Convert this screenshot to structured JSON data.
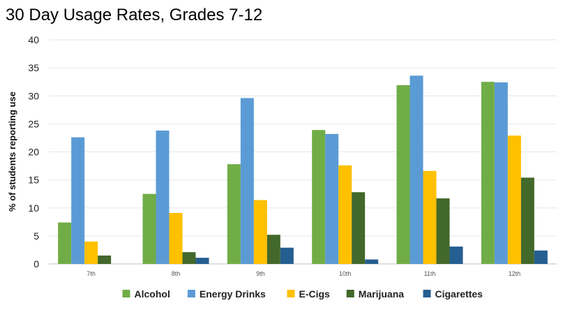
{
  "chart_data": {
    "type": "bar",
    "title": "30 Day Usage Rates, Grades 7-12",
    "ylabel": "% of  students reporting use",
    "xlabel": "",
    "ylim": [
      0,
      40
    ],
    "yticks": [
      0,
      5,
      10,
      15,
      20,
      25,
      30,
      35,
      40
    ],
    "grid": true,
    "legend_position": "bottom",
    "categories": [
      "7th",
      "8th",
      "9th",
      "10th",
      "11th",
      "12th"
    ],
    "series": [
      {
        "name": "Alcohol",
        "color": "#70ad47",
        "values": [
          7.4,
          12.5,
          17.8,
          23.9,
          31.9,
          32.5
        ]
      },
      {
        "name": "Energy Drinks",
        "color": "#5b9bd5",
        "values": [
          22.6,
          23.8,
          29.6,
          23.2,
          33.6,
          32.4
        ]
      },
      {
        "name": "E-Cigs",
        "color": "#ffc000",
        "values": [
          4.0,
          9.1,
          11.4,
          17.6,
          16.6,
          22.9
        ]
      },
      {
        "name": "Marijuana",
        "color": "#43682b",
        "values": [
          1.5,
          2.1,
          5.2,
          12.8,
          11.7,
          15.4
        ]
      },
      {
        "name": "Cigarettes",
        "color": "#255e91",
        "values": [
          0.0,
          1.1,
          2.9,
          0.8,
          3.1,
          2.4
        ]
      }
    ]
  }
}
